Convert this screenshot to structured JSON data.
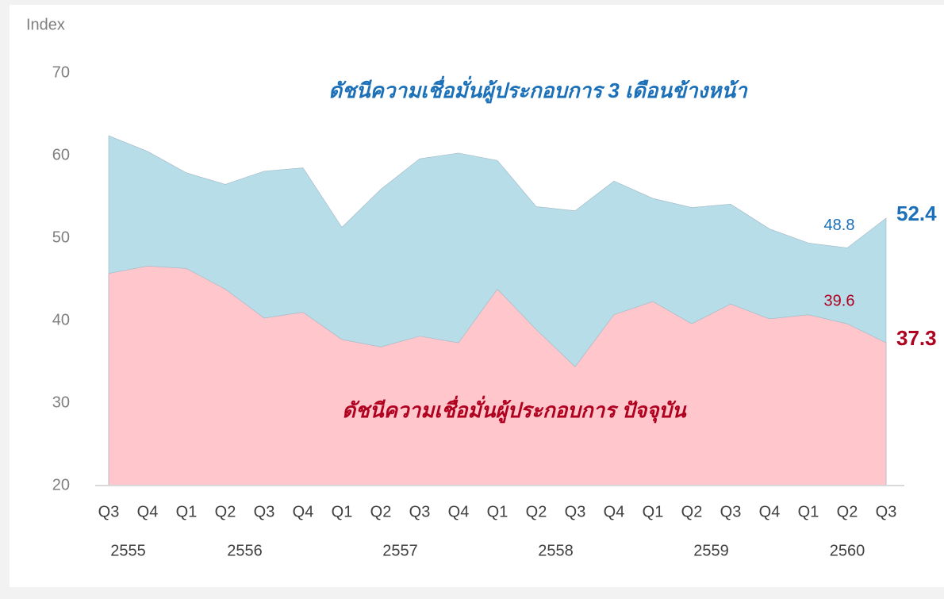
{
  "chart_data": {
    "type": "area",
    "y_label": "Index",
    "categories": [
      "Q3",
      "Q4",
      "Q1",
      "Q2",
      "Q3",
      "Q4",
      "Q1",
      "Q2",
      "Q3",
      "Q4",
      "Q1",
      "Q2",
      "Q3",
      "Q4",
      "Q1",
      "Q2",
      "Q3",
      "Q4",
      "Q1",
      "Q2",
      "Q3"
    ],
    "groups": [
      {
        "name": "2555",
        "size": 2
      },
      {
        "name": "2556",
        "size": 4
      },
      {
        "name": "2557",
        "size": 4
      },
      {
        "name": "2558",
        "size": 4
      },
      {
        "name": "2559",
        "size": 4
      },
      {
        "name": "2560",
        "size": 3
      }
    ],
    "series": [
      {
        "name": "ดัชนีความเชื่อมั่นผู้ประกอบการ 3 เดือนข้างหน้า",
        "color": "#b7dde8",
        "text_color": "#1b70b8",
        "values": [
          62.4,
          60.5,
          57.9,
          56.5,
          58.1,
          58.5,
          51.3,
          55.9,
          59.6,
          60.3,
          59.4,
          53.8,
          53.3,
          56.9,
          54.8,
          53.7,
          54.1,
          51.1,
          49.4,
          48.8,
          52.4
        ]
      },
      {
        "name": "ดัชนีความเชื่อมั่นผู้ประกอบการ ปัจจุบัน",
        "color": "#ffc7cb",
        "text_color": "#b00020",
        "values": [
          45.7,
          46.6,
          46.3,
          43.8,
          40.3,
          41.0,
          37.7,
          36.8,
          38.1,
          37.3,
          43.8,
          38.9,
          34.4,
          40.7,
          42.3,
          39.6,
          42.0,
          40.2,
          40.7,
          39.6,
          37.3
        ]
      }
    ],
    "ylim": [
      20,
      70
    ],
    "yticks": [
      20,
      30,
      40,
      50,
      60,
      70
    ]
  }
}
